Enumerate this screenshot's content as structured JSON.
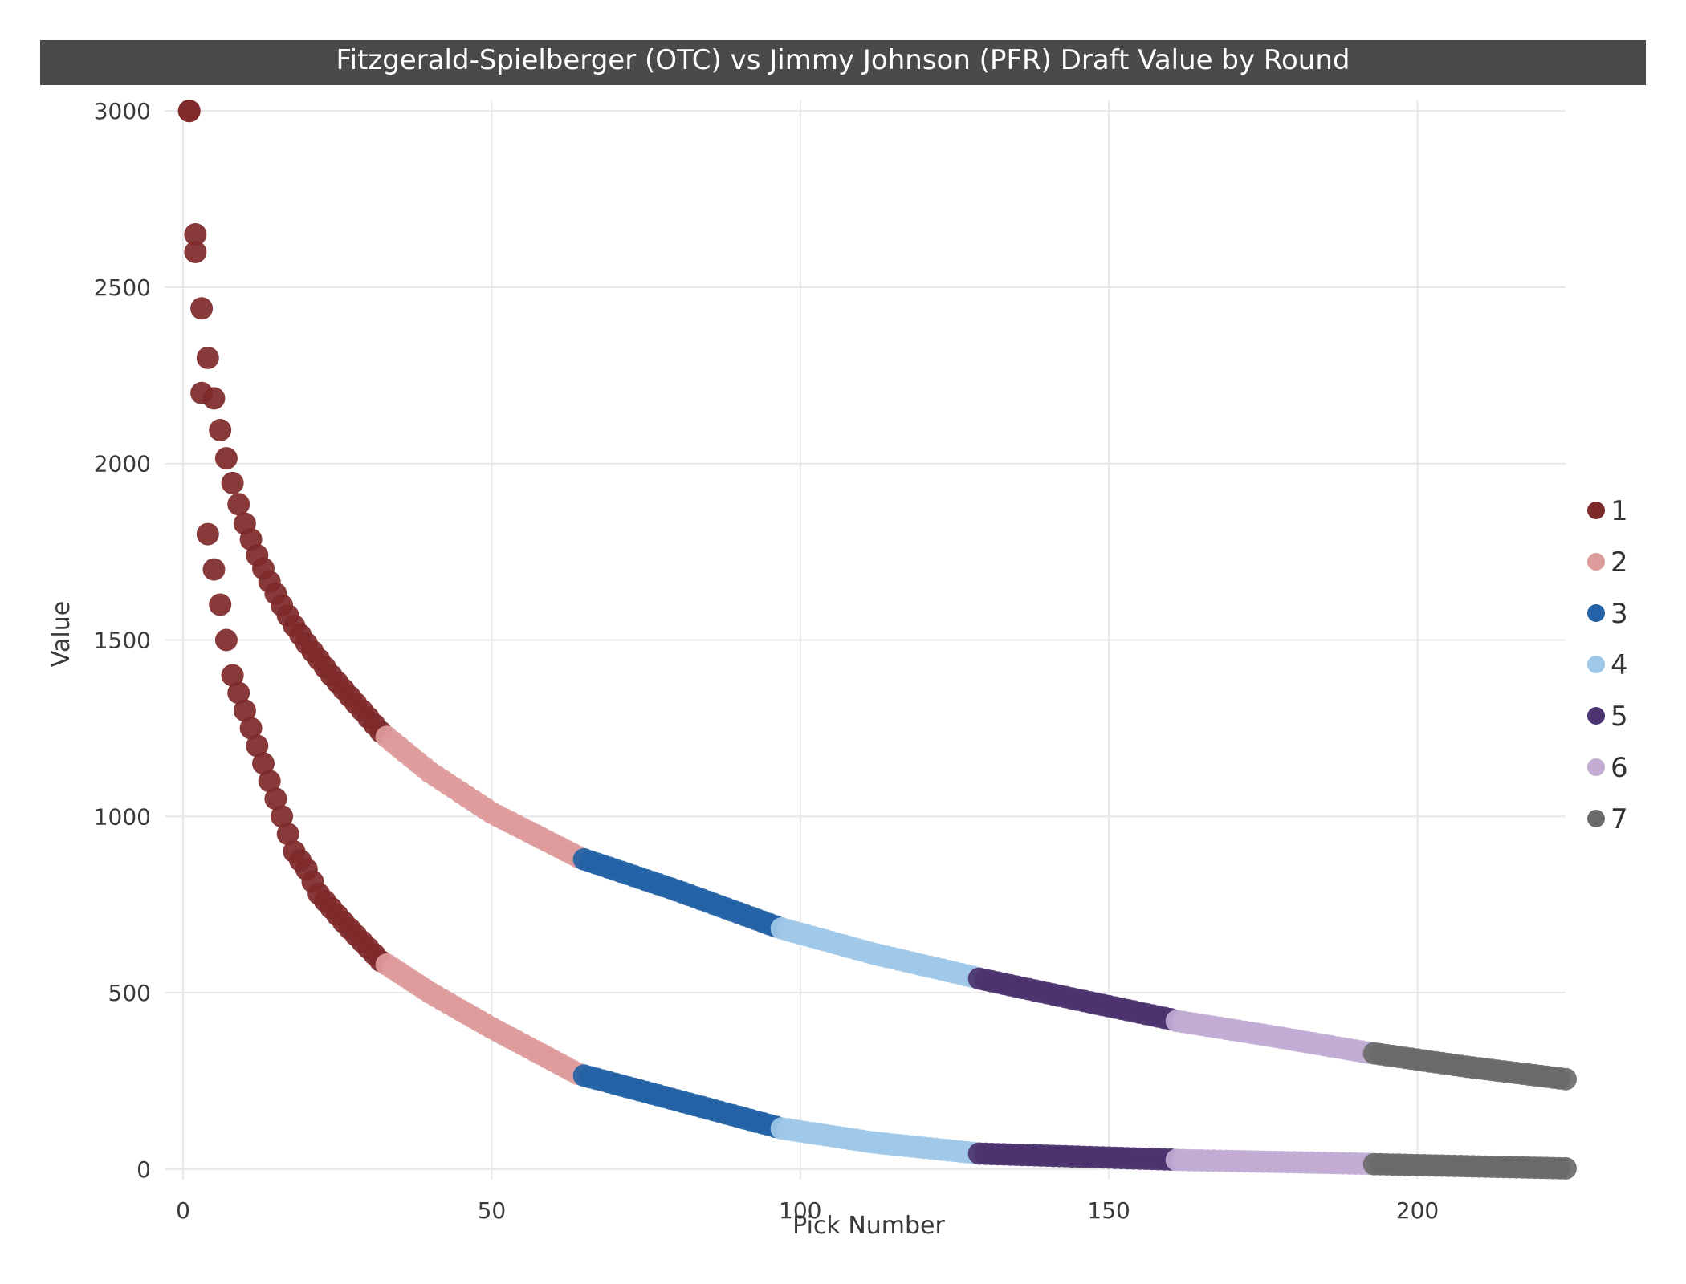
{
  "chart_data": {
    "type": "scatter",
    "title": "Fitzgerald-Spielberger (OTC) vs Jimmy Johnson (PFR) Draft Value by Round",
    "xlabel": "Pick Number",
    "ylabel": "Value",
    "xlim": [
      -3,
      224
    ],
    "ylim": [
      -30,
      3030
    ],
    "x_ticks": [
      0,
      50,
      100,
      150,
      200
    ],
    "y_ticks": [
      0,
      500,
      1000,
      1500,
      2000,
      2500,
      3000
    ],
    "grid": true,
    "legend": {
      "position": "right",
      "entries": [
        "1",
        "2",
        "3",
        "4",
        "5",
        "6",
        "7"
      ]
    },
    "round_colors": [
      "#7f2a2a",
      "#de9b9b",
      "#2462a6",
      "#9fc8e8",
      "#4c3470",
      "#c2acd4",
      "#6b6b6b"
    ],
    "round_ranges": [
      [
        1,
        32
      ],
      [
        33,
        64
      ],
      [
        65,
        96
      ],
      [
        97,
        128
      ],
      [
        129,
        160
      ],
      [
        161,
        192
      ],
      [
        193,
        224
      ]
    ],
    "series": [
      {
        "name": "OTC",
        "anchors_x": [
          1,
          2,
          3,
          4,
          5,
          6,
          7,
          8,
          9,
          10,
          12,
          14,
          16,
          18,
          20,
          24,
          28,
          32,
          33,
          40,
          50,
          64,
          65,
          80,
          96,
          97,
          112,
          128,
          129,
          145,
          160,
          161,
          176,
          192,
          193,
          208,
          224
        ],
        "anchors_y": [
          3000,
          2650,
          2440,
          2300,
          2185,
          2095,
          2015,
          1945,
          1885,
          1830,
          1740,
          1665,
          1598,
          1540,
          1490,
          1400,
          1320,
          1240,
          1225,
          1125,
          1010,
          885,
          878,
          790,
          688,
          682,
          610,
          545,
          540,
          480,
          425,
          420,
          378,
          330,
          328,
          290,
          255
        ]
      },
      {
        "name": "PFR",
        "anchors_x": [
          1,
          2,
          3,
          4,
          5,
          6,
          7,
          8,
          9,
          10,
          11,
          12,
          13,
          14,
          15,
          16,
          17,
          18,
          19,
          20,
          22,
          26,
          32,
          33,
          40,
          50,
          64,
          65,
          80,
          96,
          97,
          112,
          128,
          129,
          160,
          161,
          192,
          193,
          224
        ],
        "anchors_y": [
          3000,
          2600,
          2200,
          1800,
          1700,
          1600,
          1500,
          1400,
          1350,
          1300,
          1250,
          1200,
          1150,
          1100,
          1050,
          1000,
          950,
          900,
          875,
          850,
          780,
          700,
          590,
          580,
          500,
          400,
          270,
          265,
          195,
          120,
          115,
          75,
          46,
          44,
          27,
          26,
          15,
          14,
          2
        ]
      }
    ]
  }
}
